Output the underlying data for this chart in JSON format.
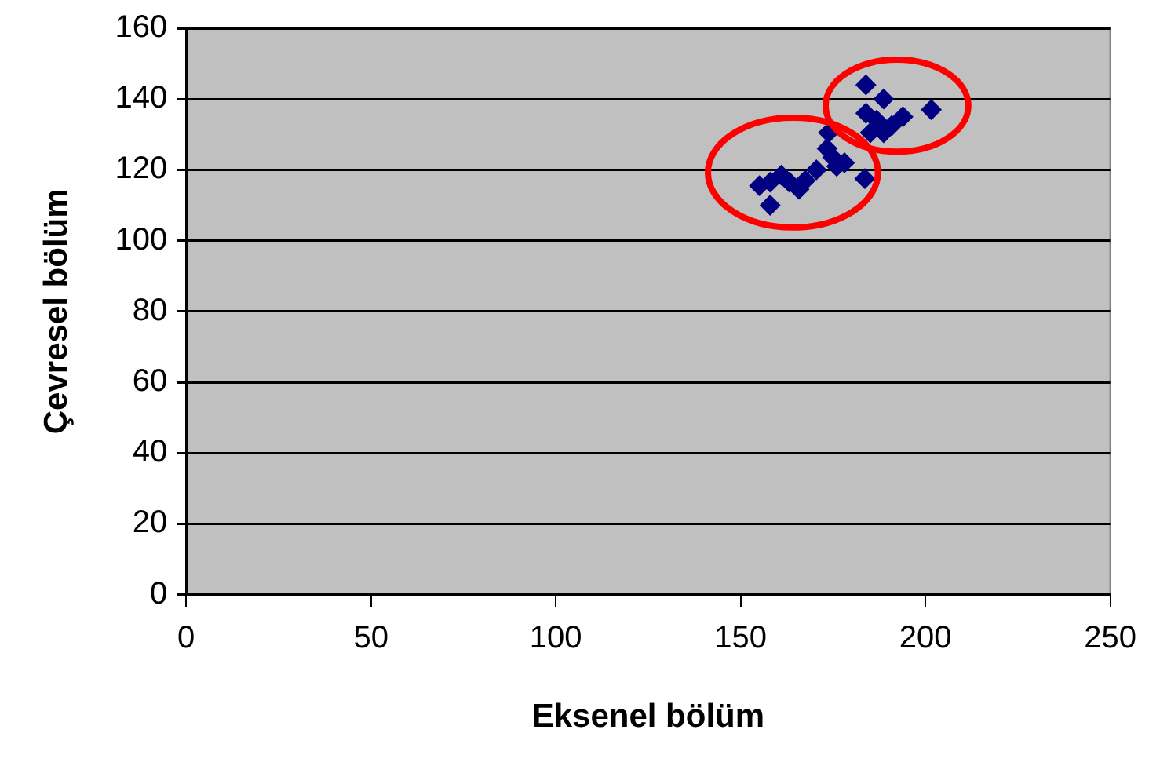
{
  "chart_data": {
    "type": "scatter",
    "xlabel": "Eksenel bölüm",
    "ylabel": "Çevresel bölüm",
    "xlim": [
      0,
      250
    ],
    "xticks": [
      0,
      50,
      100,
      150,
      200,
      250
    ],
    "ylim": [
      0,
      160
    ],
    "yticks": [
      0,
      20,
      40,
      60,
      80,
      100,
      120,
      140,
      160
    ],
    "grid": "y",
    "legend": false,
    "marker": "diamond",
    "series": [
      {
        "color": "#000080",
        "x": [
          183.9,
          188.7,
          183.9,
          186.8,
          193.9,
          190.9,
          201.6,
          185.1,
          188.7,
          173.8,
          173.4,
          174.9,
          178.1,
          176,
          170.5,
          183.6,
          167.5,
          165.8,
          161,
          158,
          155.1,
          163.2,
          158
        ],
        "values": [
          144,
          140,
          136,
          134,
          135,
          132.5,
          137,
          130.5,
          130.5,
          130.5,
          126,
          123.5,
          122,
          121,
          120,
          117.5,
          117,
          114.5,
          118.5,
          116.5,
          115.5,
          116.5,
          110
        ]
      }
    ]
  }
}
